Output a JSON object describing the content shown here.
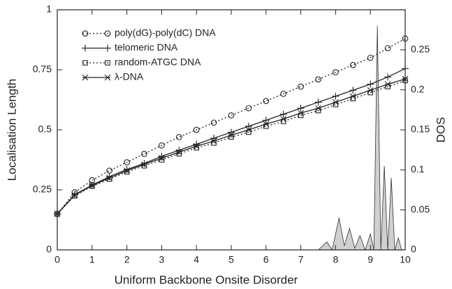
{
  "chart_data": {
    "type": "line",
    "xlabel": "Uniform Backbone Onsite Disorder",
    "ylabel": "Localisation Length",
    "y2label": "DOS",
    "x": [
      0,
      0.5,
      1,
      1.5,
      2,
      2.5,
      3,
      3.5,
      4,
      4.5,
      5,
      5.5,
      6,
      6.5,
      7,
      7.5,
      8,
      8.5,
      9,
      9.5,
      10
    ],
    "xlim": [
      0,
      10
    ],
    "xticks": [
      0,
      1,
      2,
      3,
      4,
      5,
      6,
      7,
      8,
      9,
      10
    ],
    "ylim": [
      0,
      1
    ],
    "yticks": [
      0,
      0.25,
      0.5,
      0.75,
      1
    ],
    "y2lim": [
      0,
      0.3
    ],
    "y2ticks": [
      0,
      0.05,
      0.1,
      0.15,
      0.2,
      0.25
    ],
    "series": [
      {
        "name": "poly(dG)-poly(dC) DNA",
        "color": "#222222",
        "marker": "circle",
        "dash": "dotted",
        "values": [
          0.15,
          0.24,
          0.29,
          0.33,
          0.365,
          0.4,
          0.435,
          0.47,
          0.5,
          0.53,
          0.56,
          0.59,
          0.62,
          0.65,
          0.68,
          0.71,
          0.74,
          0.77,
          0.8,
          0.84,
          0.88
        ]
      },
      {
        "name": "telomeric DNA",
        "color": "#222222",
        "marker": "plus",
        "dash": "solid",
        "values": [
          0.15,
          0.23,
          0.27,
          0.305,
          0.335,
          0.36,
          0.39,
          0.415,
          0.44,
          0.465,
          0.49,
          0.515,
          0.54,
          0.565,
          0.59,
          0.615,
          0.64,
          0.665,
          0.69,
          0.72,
          0.755
        ]
      },
      {
        "name": "random-ATGC DNA",
        "color": "#222222",
        "marker": "square",
        "dash": "dotted",
        "values": [
          0.15,
          0.225,
          0.265,
          0.295,
          0.325,
          0.35,
          0.375,
          0.4,
          0.425,
          0.445,
          0.47,
          0.49,
          0.515,
          0.535,
          0.56,
          0.58,
          0.605,
          0.63,
          0.655,
          0.68,
          0.705
        ]
      },
      {
        "name": "λ-DNA",
        "color": "#222222",
        "marker": "cross",
        "dash": "solid",
        "values": [
          0.15,
          0.228,
          0.268,
          0.3,
          0.33,
          0.356,
          0.382,
          0.407,
          0.432,
          0.453,
          0.478,
          0.5,
          0.524,
          0.545,
          0.57,
          0.59,
          0.615,
          0.64,
          0.665,
          0.69,
          0.712
        ]
      },
      {
        "type": "area",
        "axis": "y2",
        "color": "#d0d0d0",
        "x": [
          7.5,
          7.75,
          7.9,
          8.1,
          8.25,
          8.4,
          8.55,
          8.7,
          8.85,
          9.0,
          9.1,
          9.2,
          9.3,
          9.4,
          9.5,
          9.6,
          9.7,
          9.8,
          9.9,
          10
        ],
        "values": [
          0,
          0.01,
          0,
          0.04,
          0.005,
          0.027,
          0.002,
          0.018,
          0,
          0.02,
          0,
          0.28,
          0,
          0.105,
          0,
          0.09,
          0,
          0.015,
          0,
          0
        ]
      }
    ]
  }
}
